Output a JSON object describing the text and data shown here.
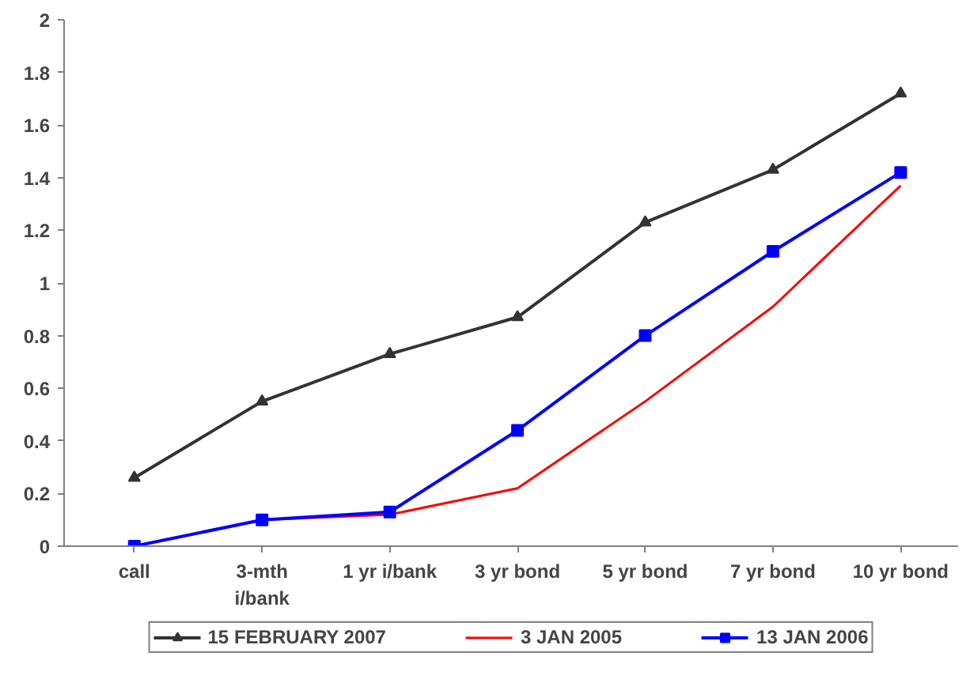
{
  "chart_data": {
    "type": "line",
    "categories": [
      "call",
      "3-mth\ni/bank",
      "1 yr i/bank",
      "3 yr bond",
      "5 yr bond",
      "7 yr bond",
      "10 yr bond"
    ],
    "ylim": [
      0,
      2
    ],
    "yticks": [
      0,
      {
        "value": 0.2,
        "label": "0.2"
      },
      {
        "value": 0.4,
        "label": "0.4"
      },
      {
        "value": 0.6,
        "label": "0.6"
      },
      {
        "value": 0.8,
        "label": "0.8"
      },
      1,
      {
        "value": 1.2,
        "label": "1.2"
      },
      {
        "value": 1.4,
        "label": "1.4"
      },
      {
        "value": 1.6,
        "label": "1.6"
      },
      {
        "value": 1.8,
        "label": "1.8"
      },
      2
    ],
    "grid": false,
    "legend": "bottom",
    "series": [
      {
        "name": "15 FEBRUARY 2007",
        "color": "#333333",
        "marker": "triangle",
        "values": [
          0.26,
          0.55,
          0.73,
          0.87,
          1.23,
          1.43,
          1.72
        ]
      },
      {
        "name": "3 JAN 2005",
        "color": "#ff0000",
        "marker": "none",
        "values": [
          0,
          0.1,
          0.12,
          0.22,
          0.55,
          0.91,
          1.37
        ]
      },
      {
        "name": "13 JAN 2006",
        "color": "#0000ff",
        "marker": "square",
        "values": [
          0,
          0.1,
          0.13,
          0.44,
          0.8,
          1.12,
          1.42
        ]
      }
    ]
  }
}
